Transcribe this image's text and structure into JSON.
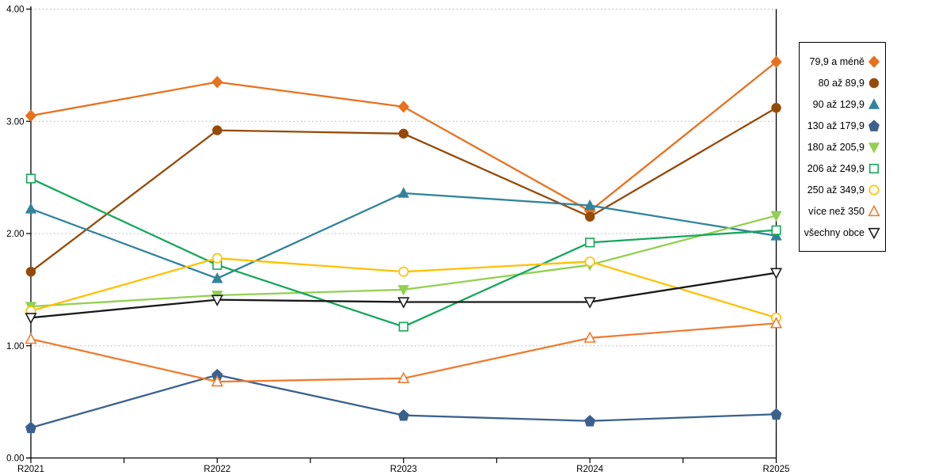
{
  "chart_data": {
    "type": "line",
    "title": "",
    "xlabel": "",
    "ylabel": "",
    "categories": [
      "R2021",
      "R2022",
      "R2023",
      "R2024",
      "R2025"
    ],
    "series": [
      {
        "name": "79,9 a méně",
        "marker": "diamond",
        "fill": "solid",
        "color": "#E8711E",
        "values": [
          3.05,
          3.35,
          3.13,
          2.2,
          3.53
        ]
      },
      {
        "name": "80 až 89,9",
        "marker": "circle",
        "fill": "solid",
        "color": "#964A08",
        "values": [
          1.66,
          2.92,
          2.89,
          2.15,
          3.12
        ]
      },
      {
        "name": "90 až 129,9",
        "marker": "triangle-up",
        "fill": "solid",
        "color": "#31849B",
        "values": [
          2.22,
          1.6,
          2.36,
          2.25,
          1.98
        ]
      },
      {
        "name": "130 až 179,9",
        "marker": "pentagon",
        "fill": "solid",
        "color": "#3A618E",
        "values": [
          0.27,
          0.74,
          0.38,
          0.33,
          0.39
        ]
      },
      {
        "name": "180 až 205,9",
        "marker": "triangle-down",
        "fill": "solid",
        "color": "#92D050",
        "values": [
          1.35,
          1.45,
          1.5,
          1.72,
          2.16
        ]
      },
      {
        "name": "206 až 249,9",
        "marker": "square",
        "fill": "open",
        "color": "#17A65B",
        "values": [
          2.49,
          1.72,
          1.17,
          1.92,
          2.03
        ]
      },
      {
        "name": "250 až 349,9",
        "marker": "circle",
        "fill": "open",
        "color": "#FFC000",
        "values": [
          1.31,
          1.78,
          1.66,
          1.75,
          1.25
        ]
      },
      {
        "name": "více než 350",
        "marker": "triangle-up",
        "fill": "open",
        "color": "#ED7D31",
        "values": [
          1.06,
          0.68,
          0.71,
          1.07,
          1.2
        ]
      },
      {
        "name": "všechny obce",
        "marker": "triangle-down",
        "fill": "open",
        "color": "#1A1A1A",
        "values": [
          1.25,
          1.41,
          1.39,
          1.39,
          1.65
        ]
      }
    ],
    "ylim": [
      0,
      4
    ],
    "ytick_labels": [
      "0.00",
      "1.00",
      "2.00",
      "3.00",
      "4.00"
    ],
    "grid": "horizontal-dotted",
    "gridline_color": "#BFBFBF",
    "axis_color": "#000000",
    "legend_position": "right"
  }
}
